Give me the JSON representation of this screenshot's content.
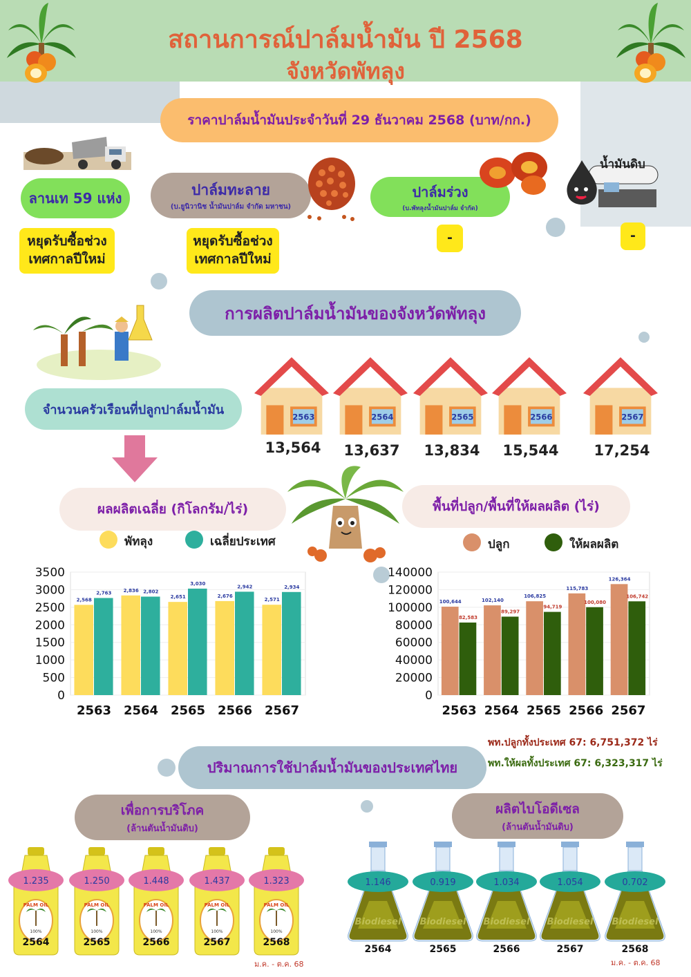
{
  "header": {
    "title_line1": "สถานการณ์ปาล์มน้ำมัน ปี 2568",
    "title_line2": "จังหวัดพัทลุง"
  },
  "price": {
    "banner": "ราคาปาล์มน้ำมันประจำวันที่ 29 ธันวาคม 2568 (บาท/กก.)",
    "yard": {
      "label": "ลานเท 59 แห่ง",
      "value": "หยุดรับซื้อช่วงเทศกาลปีใหม่"
    },
    "thalay": {
      "label": "ปาล์มทะลาย",
      "sub": "(บ.ยูนิวานิช น้ำมันปาล์ม จำกัด มหาชน)",
      "value": "หยุดรับซื้อช่วงเทศกาลปีใหม่"
    },
    "loose": {
      "label": "ปาล์มร่วง",
      "sub": "(บ.พัทลุงน้ำมันปาล์ม จำกัด)",
      "value": "-"
    },
    "crude": {
      "label": "น้ำมันดิบ",
      "value": "-"
    }
  },
  "production": {
    "banner": "การผลิตปาล์มน้ำมันของจังหวัดพัทลุง",
    "households_label": "จำนวนครัวเรือนที่ปลูกปาล์มน้ำมัน",
    "households": [
      {
        "year": "2563",
        "value": "13,564"
      },
      {
        "year": "2564",
        "value": "13,637"
      },
      {
        "year": "2565",
        "value": "13,834"
      },
      {
        "year": "2566",
        "value": "15,544"
      },
      {
        "year": "2567",
        "value": "17,254"
      }
    ]
  },
  "yield_chart_title": "ผลผลิตเฉลี่ย (กิโลกรัม/ไร่)",
  "area_chart_title": "พื้นที่ปลูก/พื้นที่ให้ผลผลิต (ไร่)",
  "chart_data": [
    {
      "type": "bar",
      "categories": [
        "2563",
        "2564",
        "2565",
        "2566",
        "2567"
      ],
      "series": [
        {
          "name": "พัทลุง",
          "color": "#fddc5c",
          "values": [
            2568,
            2836,
            2651,
            2676,
            2571
          ],
          "labels": [
            "2,568",
            "2,836",
            "2,651",
            "2,676",
            "2,571"
          ]
        },
        {
          "name": "เฉลี่ยประเทศ",
          "color": "#2eaf9d",
          "values": [
            2763,
            2802,
            3030,
            2942,
            2934
          ],
          "labels": [
            "2,763",
            "2,802",
            "3,030",
            "2,942",
            "2,934"
          ]
        }
      ],
      "yticks": [
        "0",
        "500",
        "1000",
        "1500",
        "2000",
        "2500",
        "3000",
        "3500"
      ],
      "ylim": [
        0,
        3500
      ]
    },
    {
      "type": "bar",
      "categories": [
        "2563",
        "2564",
        "2565",
        "2566",
        "2567"
      ],
      "series": [
        {
          "name": "ปลูก",
          "color": "#d9906a",
          "values": [
            100644,
            102140,
            106825,
            115783,
            126364
          ],
          "labels": [
            "100,644",
            "102,140",
            "106,825",
            "115,783",
            "126,364"
          ]
        },
        {
          "name": "ให้ผลผลิต",
          "color": "#2f5e0c",
          "values": [
            82583,
            89297,
            94719,
            100080,
            106742
          ],
          "labels": [
            "82,583",
            "89,297",
            "94,719",
            "100,080",
            "106,742"
          ]
        }
      ],
      "yticks": [
        "0",
        "20000",
        "40000",
        "60000",
        "80000",
        "100000",
        "120000",
        "140000"
      ],
      "ylim": [
        0,
        140000
      ]
    }
  ],
  "country_area": {
    "planted": "พท.ปลูกทั้งประเทศ  67: 6,751,372 ไร่",
    "harvested": "พท.ให้ผลทั้งประเทศ 67: 6,323,317 ไร่"
  },
  "usage": {
    "banner": "ปริมาณการใช้ปาล์มน้ำมันของประเทศไทย",
    "consumption": {
      "title": "เพื่อการบริโภค",
      "unit": "(ล้านตันน้ำมันดิบ)",
      "bottle_text": "PALM OIL",
      "bottle_pct": "100%",
      "items": [
        {
          "year": "2564",
          "value": "1.235"
        },
        {
          "year": "2565",
          "value": "1.250"
        },
        {
          "year": "2566",
          "value": "1.448"
        },
        {
          "year": "2567",
          "value": "1.437"
        },
        {
          "year": "2568",
          "value": "1.323"
        }
      ],
      "note": "ม.ค. - ต.ค. 68"
    },
    "biodiesel": {
      "title": "ผลิตไบโอดีเซล",
      "unit": "(ล้านตันน้ำมันดิบ)",
      "flask_text": "Biodiesel",
      "items": [
        {
          "year": "2564",
          "value": "1.146"
        },
        {
          "year": "2565",
          "value": "0.919"
        },
        {
          "year": "2566",
          "value": "1.034"
        },
        {
          "year": "2567",
          "value": "1.054"
        },
        {
          "year": "2568",
          "value": "0.702"
        }
      ],
      "note": "ม.ค. - ต.ค. 68"
    }
  }
}
